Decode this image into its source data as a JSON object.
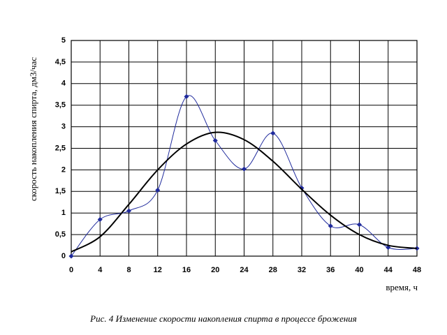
{
  "chart_data": {
    "type": "line",
    "caption": "Рис. 4  Изменение скорости накопления спирта в процессе брожения",
    "x_label": "время, ч",
    "y_label": "скорость накопления спирта, дм3/час",
    "x": [
      0,
      4,
      8,
      12,
      16,
      20,
      24,
      28,
      32,
      36,
      40,
      44,
      48
    ],
    "series": [
      {
        "color": "#1f2a9c",
        "markers": true,
        "values": [
          0,
          0.85,
          1.05,
          1.53,
          3.7,
          2.68,
          2.02,
          2.85,
          1.58,
          0.7,
          0.73,
          0.2,
          0.18
        ]
      },
      {
        "color": "#000000",
        "markers": false,
        "values": [
          0.1,
          0.45,
          1.2,
          2.0,
          2.6,
          2.87,
          2.7,
          2.2,
          1.55,
          0.95,
          0.5,
          0.25,
          0.18
        ]
      }
    ],
    "xlim": [
      0,
      48
    ],
    "xticks": [
      0,
      4,
      8,
      12,
      16,
      20,
      24,
      28,
      32,
      36,
      40,
      44,
      48
    ],
    "ylim": [
      0,
      5
    ],
    "yticks": [
      0,
      {
        "value": 0.5,
        "label": "0,5"
      },
      1,
      {
        "value": 1.5,
        "label": "1,5"
      },
      2,
      {
        "value": 2.5,
        "label": "2,5"
      },
      3,
      {
        "value": 3.5,
        "label": "3,5"
      },
      4,
      {
        "value": 4.5,
        "label": "4,5"
      },
      5
    ],
    "grid": true
  }
}
